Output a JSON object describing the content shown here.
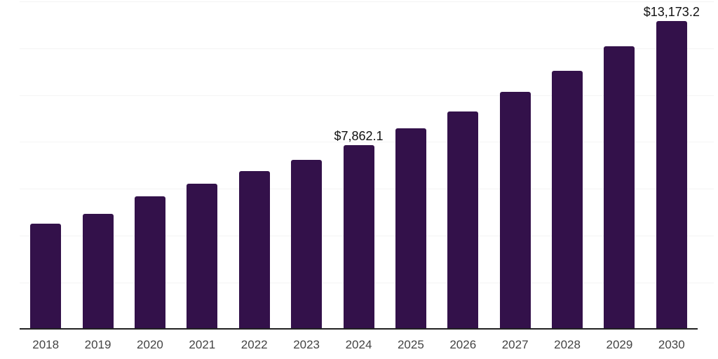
{
  "chart_data": {
    "type": "bar",
    "title": "",
    "xlabel": "",
    "ylabel": "",
    "categories": [
      "2018",
      "2019",
      "2020",
      "2021",
      "2022",
      "2023",
      "2024",
      "2025",
      "2026",
      "2027",
      "2028",
      "2029",
      "2030"
    ],
    "values": [
      4510,
      4930,
      5670,
      6225,
      6740,
      7230,
      7862.1,
      8580,
      9295,
      10140,
      11040,
      12095,
      13173.2
    ],
    "value_labels": [
      {
        "category": "2024",
        "text": "$7,862.1"
      },
      {
        "category": "2030",
        "text": "$13,173.2"
      }
    ],
    "ylim": [
      0,
      14000
    ],
    "gridline_step": 2000,
    "grid": true,
    "legend": "none",
    "y_axis_labels_visible": false,
    "colors": {
      "bar": "#33114a",
      "axis": "#222222",
      "gridline": "#f4f4f4",
      "tick_label": "#444444",
      "data_label": "#111111",
      "background": "#ffffff"
    }
  }
}
